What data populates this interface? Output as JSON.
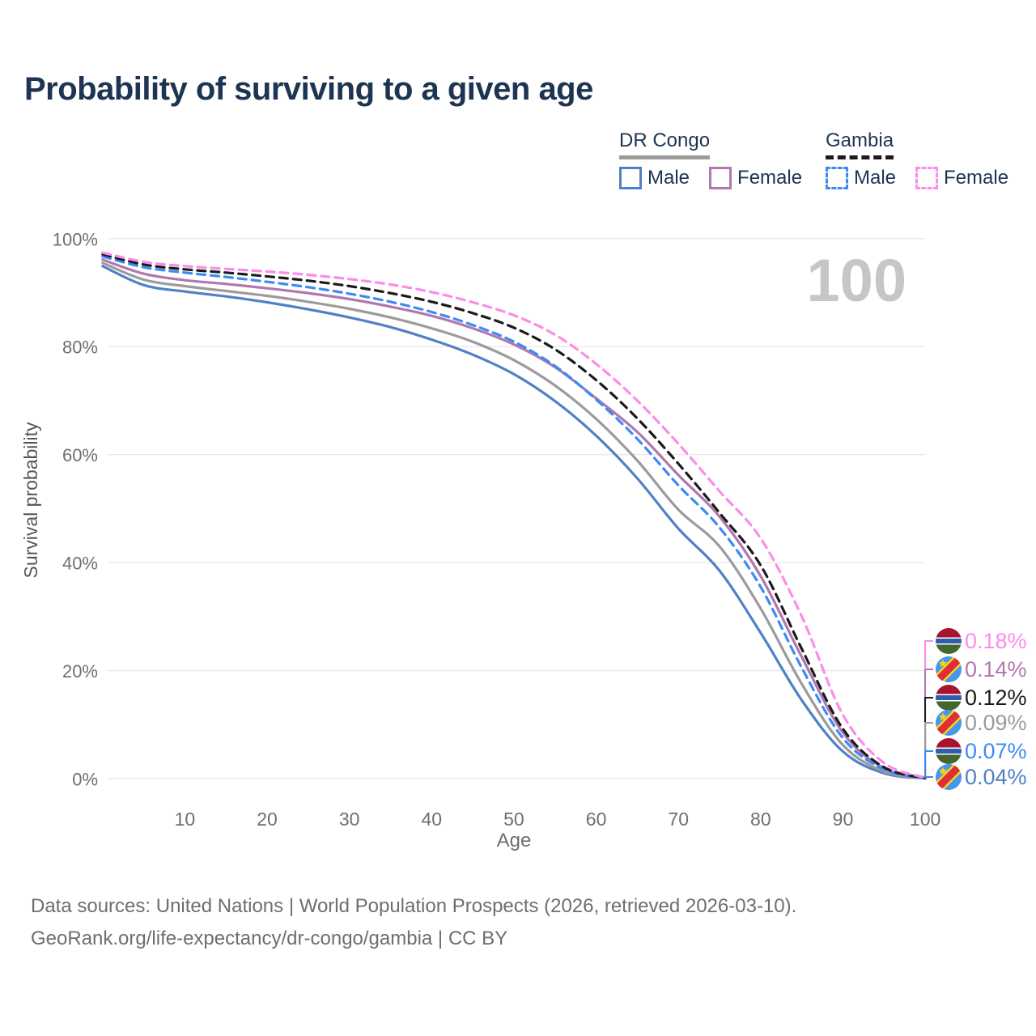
{
  "title": "Probability of surviving to a given age",
  "legend": {
    "groups": [
      {
        "label": "DR Congo",
        "underline_style": "solid",
        "underline_color": "#9b9b9b",
        "items": [
          {
            "label": "Male",
            "color": "#4f81c7",
            "dashed": false
          },
          {
            "label": "Female",
            "color": "#b078ae",
            "dashed": false
          }
        ]
      },
      {
        "label": "Gambia",
        "underline_style": "dashed",
        "underline_color": "#1b1b1b",
        "items": [
          {
            "label": "Male",
            "color": "#3d8af7",
            "dashed": true
          },
          {
            "label": "Female",
            "color": "#fb8ce8",
            "dashed": true
          }
        ]
      }
    ]
  },
  "chart_data": {
    "type": "line",
    "title": "Probability of surviving to a given age",
    "xlabel": "Age",
    "ylabel": "Survival probability",
    "xlim": [
      0,
      100
    ],
    "ylim": [
      0,
      100
    ],
    "grid": "horizontal",
    "watermark": "100",
    "x_ticks": [
      10,
      20,
      30,
      40,
      50,
      60,
      70,
      80,
      90,
      100
    ],
    "y_ticks": [
      0,
      20,
      40,
      60,
      80,
      100
    ],
    "y_tick_labels": [
      "0%",
      "20%",
      "40%",
      "60%",
      "80%",
      "100%"
    ],
    "ages": [
      0,
      5,
      10,
      15,
      20,
      25,
      30,
      35,
      40,
      45,
      50,
      55,
      60,
      65,
      70,
      75,
      80,
      85,
      90,
      95,
      100
    ],
    "series": [
      {
        "name": "DR Congo Male",
        "country": "DR Congo",
        "sex": "Male",
        "color": "#4f81c7",
        "dashed": false,
        "flag": "cod",
        "end_label": "0.04%",
        "values": [
          94.9,
          91.4,
          90.2,
          89.3,
          88.2,
          86.9,
          85.4,
          83.6,
          81.3,
          78.5,
          74.9,
          69.9,
          63.5,
          55.6,
          46.3,
          38.5,
          27.0,
          14.5,
          5.0,
          1.0,
          0.04
        ]
      },
      {
        "name": "DR Congo",
        "country": "DR Congo",
        "sex": "Both",
        "color": "#9b9b9b",
        "dashed": false,
        "flag": "cod",
        "end_label": "0.09%",
        "values": [
          95.5,
          92.4,
          91.2,
          90.3,
          89.4,
          88.3,
          87.0,
          85.4,
          83.4,
          80.9,
          77.5,
          72.8,
          66.6,
          58.9,
          49.8,
          43.0,
          31.5,
          17.5,
          6.2,
          1.3,
          0.09
        ]
      },
      {
        "name": "DR Congo Female",
        "country": "DR Congo",
        "sex": "Female",
        "color": "#b078ae",
        "dashed": false,
        "flag": "cod",
        "end_label": "0.14%",
        "values": [
          96.1,
          93.5,
          92.3,
          91.6,
          90.8,
          89.9,
          88.8,
          87.4,
          85.7,
          83.4,
          80.4,
          76.2,
          70.4,
          64.2,
          56.2,
          48.5,
          37.5,
          22.5,
          8.5,
          1.9,
          0.14
        ]
      },
      {
        "name": "Gambia Male",
        "country": "Gambia",
        "sex": "Male",
        "color": "#3d8af7",
        "dashed": true,
        "flag": "gmb",
        "end_label": "0.07%",
        "values": [
          96.7,
          94.7,
          93.7,
          92.9,
          92.0,
          91.0,
          89.8,
          88.3,
          86.4,
          84.0,
          80.9,
          76.4,
          70.2,
          62.9,
          54.3,
          46.5,
          35.5,
          20.5,
          7.5,
          1.7,
          0.07
        ]
      },
      {
        "name": "Gambia",
        "country": "Gambia",
        "sex": "Both",
        "color": "#1b1b1b",
        "dashed": true,
        "flag": "gmb",
        "end_label": "0.12%",
        "values": [
          97.1,
          95.2,
          94.3,
          93.7,
          93.0,
          92.2,
          91.2,
          89.9,
          88.3,
          86.2,
          83.5,
          79.5,
          73.8,
          66.7,
          58.3,
          49.2,
          39.5,
          24.0,
          9.2,
          2.1,
          0.12
        ]
      },
      {
        "name": "Gambia Female",
        "country": "Gambia",
        "sex": "Female",
        "color": "#fb8ce8",
        "dashed": true,
        "flag": "gmb",
        "end_label": "0.18%",
        "values": [
          97.4,
          95.7,
          94.9,
          94.4,
          93.9,
          93.3,
          92.5,
          91.5,
          90.1,
          88.2,
          85.8,
          82.2,
          76.8,
          70.0,
          62.0,
          53.2,
          44.5,
          30.0,
          11.8,
          2.9,
          0.18
        ]
      }
    ],
    "end_label_rows": [
      {
        "series": "Gambia Female",
        "text": "0.18%",
        "color": "#fb8ce8",
        "flag": "gmb"
      },
      {
        "series": "DR Congo Female",
        "text": "0.14%",
        "color": "#b078ae",
        "flag": "cod"
      },
      {
        "series": "Gambia",
        "text": "0.12%",
        "color": "#1b1b1b",
        "flag": "gmb"
      },
      {
        "series": "DR Congo",
        "text": "0.09%",
        "color": "#9b9b9b",
        "flag": "cod"
      },
      {
        "series": "Gambia Male",
        "text": "0.07%",
        "color": "#3d8af7",
        "flag": "gmb"
      },
      {
        "series": "DR Congo Male",
        "text": "0.04%",
        "color": "#4f81c7",
        "flag": "cod"
      }
    ]
  },
  "footer": {
    "line1": "Data sources: United Nations | World Population Prospects (2026, retrieved 2026-03-10).",
    "line2": "GeoRank.org/life-expectancy/dr-congo/gambia | CC BY"
  },
  "colors": {
    "title_text": "#1d3452",
    "axis_text": "#6f6f6f",
    "ylabel_text": "#565656",
    "gridline": "#e8e8e8",
    "watermark": "#c6c6c6",
    "footer_text": "#6e6e6e"
  }
}
